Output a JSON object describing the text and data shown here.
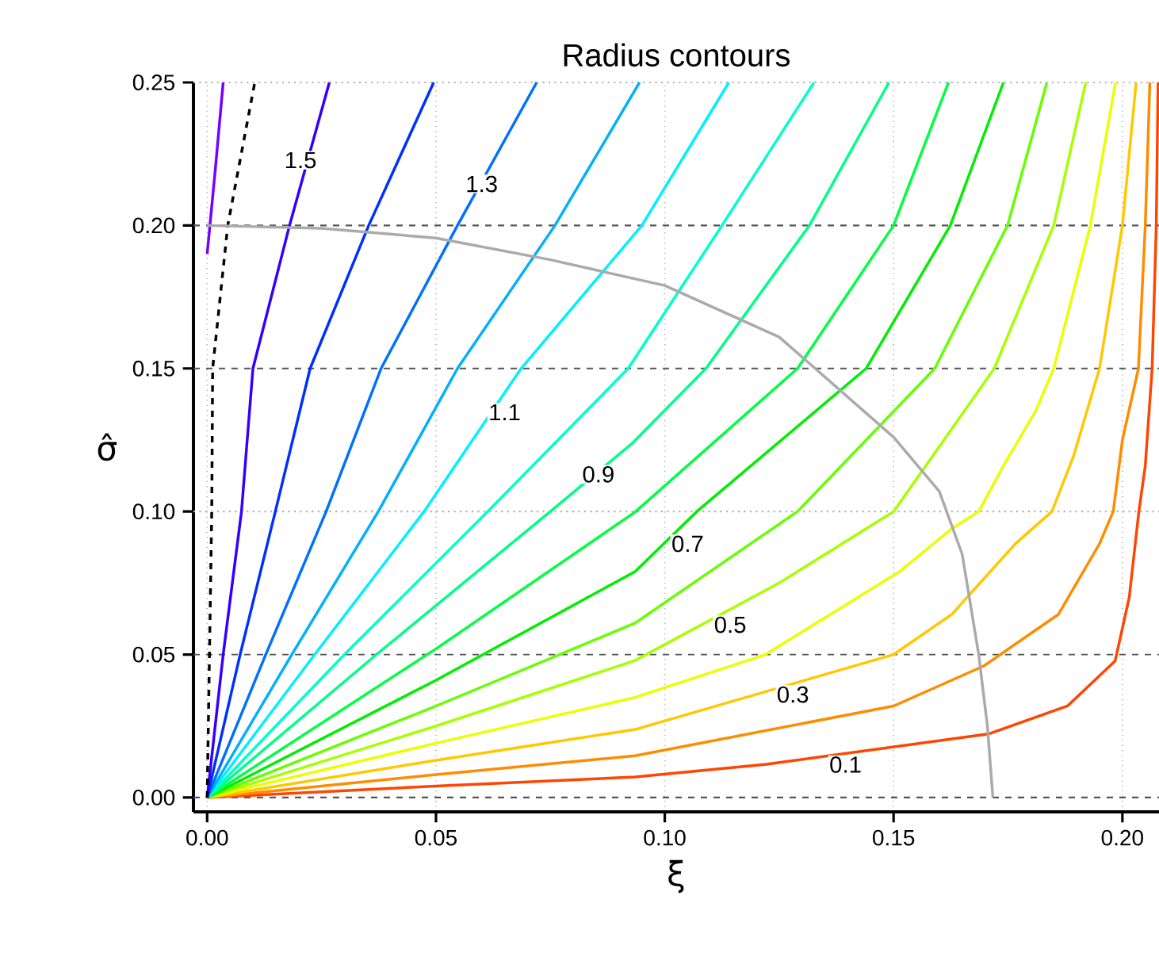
{
  "chart_data": {
    "type": "line",
    "title": "Radius contours",
    "xlabel": "ξ",
    "ylabel": "σ̂",
    "xlim": [
      -0.003,
      0.208
    ],
    "ylim": [
      -0.005,
      0.25
    ],
    "xticks": [
      {
        "value": 0,
        "label": "0.00"
      },
      {
        "value": 0.05,
        "label": "0.05"
      },
      {
        "value": 0.1,
        "label": "0.10"
      },
      {
        "value": 0.15,
        "label": "0.15"
      },
      {
        "value": 0.2,
        "label": "0.20"
      }
    ],
    "yticks": [
      {
        "value": 0,
        "label": "0.00"
      },
      {
        "value": 0.05,
        "label": "0.05"
      },
      {
        "value": 0.1,
        "label": "0.10"
      },
      {
        "value": 0.15,
        "label": "0.15"
      },
      {
        "value": 0.2,
        "label": "0.20"
      },
      {
        "value": 0.25,
        "label": "0.25"
      }
    ],
    "grid": "x",
    "ref_lines": [
      {
        "axis": "y",
        "value": 0,
        "color": "#555555",
        "line_style": "dashed"
      },
      {
        "axis": "y",
        "value": 0.05,
        "color": "#555555",
        "line_style": "dashed"
      },
      {
        "axis": "y",
        "value": 0.15,
        "color": "#555555",
        "line_style": "dashed"
      },
      {
        "axis": "y",
        "value": 0.2,
        "color": "#555555",
        "line_style": "dashed"
      },
      {
        "axis": "y",
        "value": 0.1,
        "color": "#b0b0b0",
        "line_style": "dotted"
      },
      {
        "axis": "y",
        "value": 0.25,
        "color": "#b0b0b0",
        "line_style": "dotted"
      }
    ],
    "series": [
      {
        "color": "#ff4500",
        "x": [
          0,
          0.05,
          0.0935,
          0.1222,
          0.1398,
          0.1707,
          0.188,
          0.1984,
          0.2015,
          0.2036,
          0.205,
          0.2065,
          0.2074,
          0.2078
        ],
        "values": [
          0,
          0.004,
          0.0072,
          0.0116,
          null,
          0.0222,
          0.032,
          0.0477,
          0.07,
          0.1,
          0.116,
          0.15,
          0.2,
          0.25
        ]
      },
      {
        "color": "#ff8c00",
        "x": [
          0,
          0.05,
          0.0935,
          0.15,
          0.1697,
          0.186,
          0.195,
          0.198,
          0.2,
          0.2035,
          0.205,
          0.206
        ],
        "values": [
          0,
          0.008,
          0.0146,
          0.032,
          0.046,
          0.064,
          0.0887,
          0.1,
          0.125,
          0.15,
          0.2,
          0.25
        ]
      },
      {
        "color": "#ffc800",
        "x": [
          0,
          0.05,
          0.0935,
          0.15,
          0.1627,
          0.1766,
          0.1846,
          0.1894,
          0.195,
          0.2,
          0.203
        ],
        "values": [
          0,
          0.013,
          0.0238,
          0.05,
          0.064,
          0.0887,
          0.1,
          0.1197,
          0.15,
          0.2,
          0.25
        ]
      },
      {
        "color": "#eaff00",
        "x": [
          0,
          0.05,
          0.0935,
          0.122,
          0.1513,
          0.1627,
          0.1686,
          0.174,
          0.181,
          0.185,
          0.193,
          0.1985
        ],
        "values": [
          0,
          0.019,
          0.035,
          0.05,
          0.079,
          0.094,
          0.1,
          0.116,
          0.135,
          0.15,
          0.2,
          0.25
        ]
      },
      {
        "color": "#a8ff00",
        "x": [
          0,
          0.05,
          0.0935,
          0.125,
          0.15,
          0.172,
          0.185,
          0.192
        ],
        "values": [
          0,
          0.025,
          0.0479,
          0.075,
          0.1,
          0.15,
          0.2,
          0.25
        ]
      },
      {
        "color": "#66ff00",
        "x": [
          0,
          0.05,
          0.0935,
          0.129,
          0.159,
          0.1749,
          0.1835
        ],
        "values": [
          0,
          0.032,
          0.061,
          0.1,
          0.15,
          0.2,
          0.25
        ]
      },
      {
        "color": "#00ee00",
        "x": [
          0,
          0.05,
          0.0935,
          0.107,
          0.144,
          0.1624,
          0.174
        ],
        "values": [
          0,
          0.041,
          0.079,
          0.1,
          0.15,
          0.2,
          0.25
        ]
      },
      {
        "color": "#00ff44",
        "x": [
          0,
          0.05,
          0.0935,
          0.129,
          0.15,
          0.162
        ],
        "values": [
          0,
          0.052,
          0.0998,
          0.15,
          0.2,
          0.25
        ]
      },
      {
        "color": "#00ff88",
        "x": [
          0,
          0.037,
          0.075,
          0.093,
          0.109,
          0.1316,
          0.149
        ],
        "values": [
          0,
          0.05,
          0.1,
          0.124,
          0.15,
          0.2,
          0.25
        ]
      },
      {
        "color": "#00ffcc",
        "x": [
          0,
          0.03,
          0.0613,
          0.092,
          0.1125,
          0.1326
        ],
        "values": [
          0,
          0.05,
          0.1,
          0.15,
          0.2,
          0.25
        ]
      },
      {
        "color": "#00f0ff",
        "x": [
          0,
          0.0235,
          0.0474,
          0.0686,
          0.095,
          0.114
        ],
        "values": [
          0,
          0.05,
          0.1,
          0.15,
          0.2,
          0.25
        ]
      },
      {
        "color": "#00b0ff",
        "x": [
          0,
          0.0185,
          0.0374,
          0.0547,
          0.076,
          0.0945
        ],
        "values": [
          0,
          0.05,
          0.1,
          0.15,
          0.2,
          0.25
        ]
      },
      {
        "color": "#0070ff",
        "x": [
          0,
          0.0128,
          0.026,
          0.038,
          0.0547,
          0.072
        ],
        "values": [
          0,
          0.05,
          0.1,
          0.15,
          0.2,
          0.25
        ]
      },
      {
        "color": "#0030ff",
        "x": [
          0,
          0.0072,
          0.0149,
          0.0225,
          0.0353,
          0.0495
        ],
        "values": [
          0,
          0.05,
          0.1,
          0.15,
          0.2,
          0.25
        ]
      },
      {
        "color": "#3300ff",
        "x": [
          0,
          0.0035,
          0.0075,
          0.01,
          0.018,
          0.0267
        ],
        "values": [
          0,
          0.05,
          0.1,
          0.15,
          0.2,
          0.25
        ]
      },
      {
        "color": "#7700ff",
        "x": [
          0,
          0.0018,
          0.0035
        ],
        "values": [
          0.19,
          0.22,
          0.25
        ]
      },
      {
        "color": "#000000",
        "line_style": "dashed",
        "x": [
          0,
          0.0005,
          0.001,
          0.0012,
          0.0045,
          0.0104
        ],
        "values": [
          0,
          0.05,
          0.1,
          0.15,
          0.2,
          0.25
        ]
      },
      {
        "color": "#aaaaaa",
        "x": [
          0,
          0.025,
          0.05,
          0.075,
          0.1,
          0.125,
          0.15,
          0.16,
          0.165,
          0.1686,
          0.1705,
          0.1717
        ],
        "values": [
          0.2,
          0.199,
          0.1956,
          0.188,
          0.179,
          0.161,
          0.126,
          0.107,
          0.085,
          0.05,
          0.025,
          0
        ]
      }
    ],
    "annotations": [
      {
        "text": "0.1",
        "x": 0.1395,
        "y": 0.0115
      },
      {
        "text": "0.3",
        "x": 0.128,
        "y": 0.036
      },
      {
        "text": "0.5",
        "x": 0.1143,
        "y": 0.0604
      },
      {
        "text": "0.7",
        "x": 0.105,
        "y": 0.0887
      },
      {
        "text": "0.9",
        "x": 0.0855,
        "y": 0.113
      },
      {
        "text": "1.1",
        "x": 0.065,
        "y": 0.1347
      },
      {
        "text": "1.3",
        "x": 0.06,
        "y": 0.2145
      },
      {
        "text": "1.5",
        "x": 0.0204,
        "y": 0.2228
      }
    ]
  }
}
